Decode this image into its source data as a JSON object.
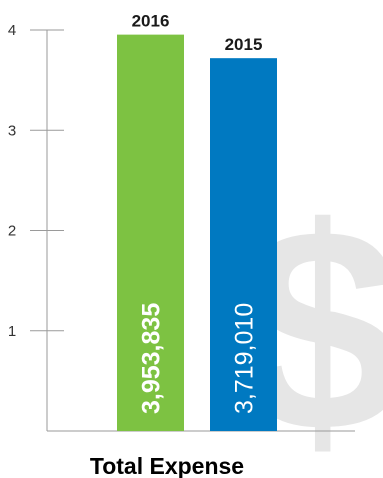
{
  "chart_data": {
    "type": "bar",
    "title": "Total Expense",
    "categories": [
      "2016",
      "2015"
    ],
    "values": [
      3953835,
      3719010
    ],
    "value_labels": [
      "3,953,835",
      "3,719,010"
    ],
    "value_label_bold": [
      true,
      false
    ],
    "bar_colors": [
      "#7dc242",
      "#0079c1"
    ],
    "yticks": [
      "1",
      "2",
      "3",
      "4"
    ],
    "ylim": [
      0,
      4000000
    ],
    "grid": false,
    "xlabel": "",
    "ylabel": "",
    "watermark_glyph": "$",
    "watermark_color": "#e6e6e6"
  }
}
